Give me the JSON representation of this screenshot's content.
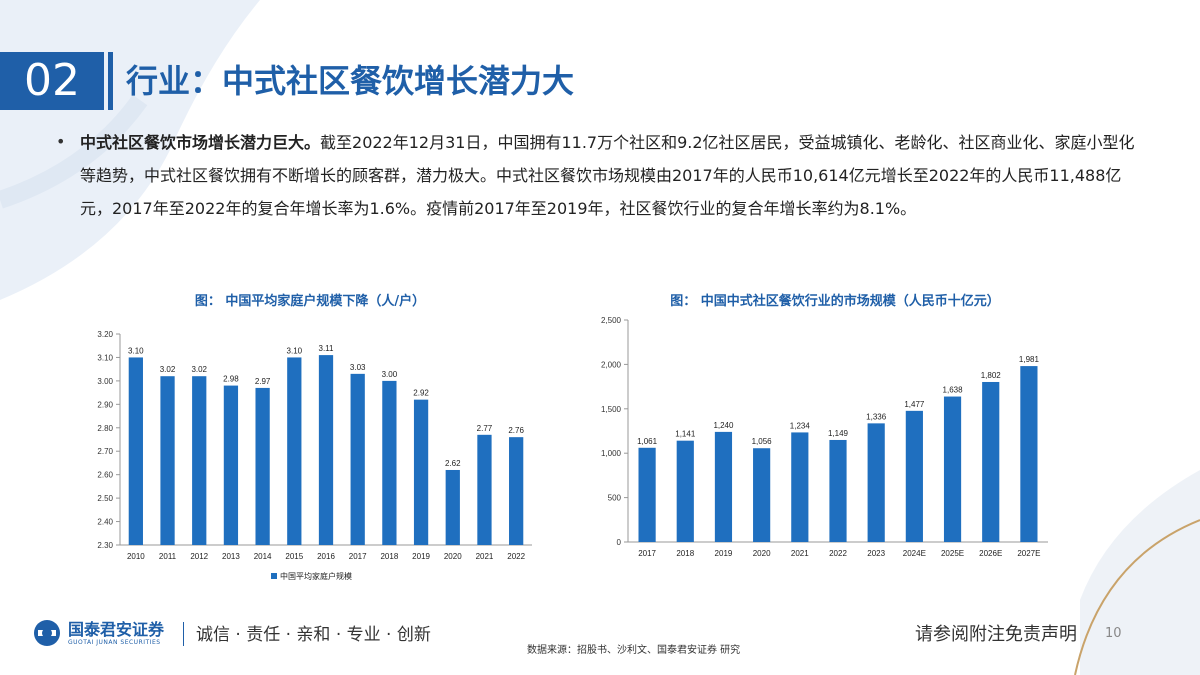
{
  "header": {
    "slide_number": "02",
    "title": "行业：中式社区餐饮增长潜力大"
  },
  "body": {
    "bullet": "•",
    "bold_lead": "中式社区餐饮市场增长潜力巨大。",
    "text": "截至2022年12月31日，中国拥有11.7万个社区和9.2亿社区居民，受益城镇化、老龄化、社区商业化、家庭小型化等趋势，中式社区餐饮拥有不断增长的顾客群，潜力极大。中式社区餐饮市场规模由2017年的人民币10,614亿元增长至2022年的人民币11,488亿元，2017年至2022年的复合年增长率为1.6%。疫情前2017年至2019年，社区餐饮行业的复合年增长率约为8.1%。"
  },
  "chart_data": [
    {
      "type": "bar",
      "title": "图：  中国平均家庭户规模下降（人/户）",
      "categories": [
        "2010",
        "2011",
        "2012",
        "2013",
        "2014",
        "2015",
        "2016",
        "2017",
        "2018",
        "2019",
        "2020",
        "2021",
        "2022"
      ],
      "series": [
        {
          "name": "中国平均家庭户规模",
          "values": [
            3.1,
            3.02,
            3.02,
            2.98,
            2.97,
            3.1,
            3.11,
            3.03,
            3.0,
            2.92,
            2.62,
            2.77,
            2.76
          ]
        }
      ],
      "value_labels": [
        "3.10",
        "3.02",
        "3.02",
        "2.98",
        "2.97",
        "3.10",
        "3.11",
        "3.03",
        "3.00",
        "2.92",
        "2.62",
        "2.77",
        "2.76"
      ],
      "ylim": [
        2.3,
        3.2
      ],
      "yticks": [
        "2.30",
        "2.40",
        "2.50",
        "2.60",
        "2.70",
        "2.80",
        "2.90",
        "3.00",
        "3.10",
        "3.20"
      ],
      "color": "#1f6fbf",
      "legend": "bottom",
      "grid": false
    },
    {
      "type": "bar",
      "title": "图：  中国中式社区餐饮行业的市场规模（人民币十亿元）",
      "categories": [
        "2017",
        "2018",
        "2019",
        "2020",
        "2021",
        "2022",
        "2023",
        "2024E",
        "2025E",
        "2026E",
        "2027E"
      ],
      "series": [
        {
          "values": [
            1061,
            1141,
            1240,
            1056,
            1234,
            1149,
            1336,
            1477,
            1638,
            1802,
            1981
          ]
        }
      ],
      "value_labels": [
        "1,061",
        "1,141",
        "1,240",
        "1,056",
        "1,234",
        "1,149",
        "1,336",
        "1,477",
        "1,638",
        "1,802",
        "1,981"
      ],
      "ylim": [
        0,
        2500
      ],
      "yticks": [
        "0",
        "500",
        "1,000",
        "1,500",
        "2,000",
        "2,500"
      ],
      "color": "#1f6fbf",
      "grid": false
    }
  ],
  "footer": {
    "logo_cn": "国泰君安证券",
    "logo_en": "GUOTAI JUNAN SECURITIES",
    "slogan": "诚信 · 责任 · 亲和 · 专业 · 创新",
    "source": "数据来源：招股书、沙利文、国泰君安证券 研究",
    "disclaimer": "请参阅附注免责声明",
    "page": "10"
  },
  "colors": {
    "brand_blue": "#1f5fa8",
    "bar_blue": "#1f6fbf"
  }
}
